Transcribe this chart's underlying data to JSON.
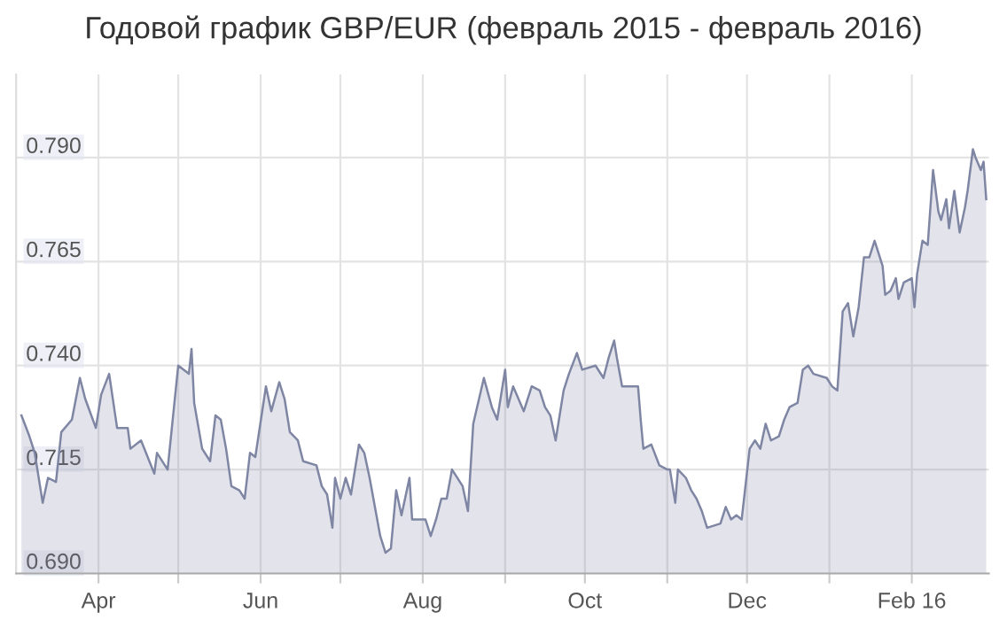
{
  "chart_data": {
    "type": "area",
    "title": "Годовой график GBP/EUR (февраль 2015 - февраль 2016)",
    "x": [
      "2015-03-03",
      "2015-03-06",
      "2015-03-08",
      "2015-03-11",
      "2015-03-13",
      "2015-03-16",
      "2015-03-18",
      "2015-03-22",
      "2015-03-25",
      "2015-03-27",
      "2015-03-31",
      "2015-04-02",
      "2015-04-05",
      "2015-04-08",
      "2015-04-12",
      "2015-04-13",
      "2015-04-17",
      "2015-04-22",
      "2015-04-23",
      "2015-04-27",
      "2015-05-01",
      "2015-05-05",
      "2015-05-06",
      "2015-05-07",
      "2015-05-10",
      "2015-05-13",
      "2015-05-15",
      "2015-05-17",
      "2015-05-19",
      "2015-05-21",
      "2015-05-24",
      "2015-05-26",
      "2015-05-28",
      "2015-05-30",
      "2015-06-03",
      "2015-06-05",
      "2015-06-08",
      "2015-06-10",
      "2015-06-12",
      "2015-06-15",
      "2015-06-17",
      "2015-06-22",
      "2015-06-24",
      "2015-06-26",
      "2015-06-28",
      "2015-06-29",
      "2015-07-01",
      "2015-07-03",
      "2015-07-05",
      "2015-07-08",
      "2015-07-10",
      "2015-07-12",
      "2015-07-16",
      "2015-07-18",
      "2015-07-20",
      "2015-07-21",
      "2015-07-22",
      "2015-07-24",
      "2015-07-27",
      "2015-07-28",
      "2015-08-02",
      "2015-08-04",
      "2015-08-06",
      "2015-08-08",
      "2015-08-10",
      "2015-08-12",
      "2015-08-16",
      "2015-08-18",
      "2015-08-20",
      "2015-08-24",
      "2015-08-27",
      "2015-08-29",
      "2015-09-01",
      "2015-09-02",
      "2015-09-04",
      "2015-09-08",
      "2015-09-11",
      "2015-09-14",
      "2015-09-16",
      "2015-09-18",
      "2015-09-20",
      "2015-09-23",
      "2015-09-25",
      "2015-09-28",
      "2015-09-30",
      "2015-10-05",
      "2015-10-08",
      "2015-10-10",
      "2015-10-12",
      "2015-10-13",
      "2015-10-15",
      "2015-10-21",
      "2015-10-22",
      "2015-10-23",
      "2015-10-26",
      "2015-10-29",
      "2015-11-01",
      "2015-11-02",
      "2015-11-04",
      "2015-11-05",
      "2015-11-08",
      "2015-11-10",
      "2015-11-12",
      "2015-11-14",
      "2015-11-16",
      "2015-11-21",
      "2015-11-23",
      "2015-11-25",
      "2015-11-27",
      "2015-11-29",
      "2015-12-02",
      "2015-12-04",
      "2015-12-06",
      "2015-12-08",
      "2015-12-10",
      "2015-12-13",
      "2015-12-15",
      "2015-12-17",
      "2015-12-20",
      "2015-12-22",
      "2015-12-24",
      "2015-12-26",
      "2015-12-31",
      "2016-01-02",
      "2016-01-04",
      "2016-01-06",
      "2016-01-08",
      "2016-01-10",
      "2016-01-12",
      "2016-01-14",
      "2016-01-16",
      "2016-01-18",
      "2016-01-21",
      "2016-01-22",
      "2016-01-24",
      "2016-01-26",
      "2016-01-27",
      "2016-01-29",
      "2016-02-01",
      "2016-02-02",
      "2016-02-03",
      "2016-02-05",
      "2016-02-07",
      "2016-02-08",
      "2016-02-09",
      "2016-02-11",
      "2016-02-12",
      "2016-02-14",
      "2016-02-15",
      "2016-02-17",
      "2016-02-19",
      "2016-02-21",
      "2016-02-22",
      "2016-02-24",
      "2016-02-25",
      "2016-02-27",
      "2016-02-28",
      "2016-02-29"
    ],
    "series": [
      {
        "color": "#7f86a3",
        "values": [
          0.728,
          0.723,
          0.719,
          0.707,
          0.713,
          0.712,
          0.724,
          0.727,
          0.737,
          0.732,
          0.725,
          0.733,
          0.738,
          0.725,
          0.725,
          0.72,
          0.722,
          0.714,
          0.719,
          0.715,
          0.74,
          0.738,
          0.744,
          0.731,
          0.72,
          0.717,
          0.728,
          0.727,
          0.72,
          0.711,
          0.71,
          0.708,
          0.719,
          0.718,
          0.735,
          0.729,
          0.736,
          0.732,
          0.724,
          0.722,
          0.717,
          0.716,
          0.711,
          0.709,
          0.701,
          0.713,
          0.708,
          0.713,
          0.709,
          0.721,
          0.719,
          0.713,
          0.699,
          0.695,
          0.696,
          0.703,
          0.71,
          0.704,
          0.713,
          0.703,
          0.703,
          0.699,
          0.703,
          0.708,
          0.708,
          0.715,
          0.711,
          0.705,
          0.726,
          0.737,
          0.73,
          0.727,
          0.739,
          0.73,
          0.735,
          0.729,
          0.735,
          0.734,
          0.73,
          0.728,
          0.722,
          0.734,
          0.738,
          0.743,
          0.739,
          0.74,
          0.737,
          0.742,
          0.746,
          0.742,
          0.735,
          0.735,
          0.727,
          0.72,
          0.721,
          0.716,
          0.715,
          0.715,
          0.707,
          0.715,
          0.713,
          0.71,
          0.708,
          0.705,
          0.701,
          0.702,
          0.706,
          0.703,
          0.704,
          0.703,
          0.72,
          0.722,
          0.72,
          0.726,
          0.722,
          0.723,
          0.727,
          0.73,
          0.731,
          0.739,
          0.74,
          0.738,
          0.737,
          0.735,
          0.734,
          0.753,
          0.755,
          0.747,
          0.754,
          0.766,
          0.766,
          0.77,
          0.764,
          0.757,
          0.758,
          0.761,
          0.756,
          0.76,
          0.761,
          0.754,
          0.762,
          0.77,
          0.769,
          0.778,
          0.787,
          0.777,
          0.775,
          0.78,
          0.773,
          0.782,
          0.772,
          0.778,
          0.782,
          0.792,
          0.79,
          0.787,
          0.789,
          0.78
        ]
      }
    ],
    "xlim": [
      "2015-03-01",
      "2016-03-01"
    ],
    "xticks": [
      {
        "value": "2015-04-01",
        "label": "Apr"
      },
      {
        "value": "2015-05-01",
        "label": null
      },
      {
        "value": "2015-06-01",
        "label": "Jun"
      },
      {
        "value": "2015-07-01",
        "label": null
      },
      {
        "value": "2015-08-01",
        "label": "Aug"
      },
      {
        "value": "2015-09-01",
        "label": null
      },
      {
        "value": "2015-10-01",
        "label": "Oct"
      },
      {
        "value": "2015-11-01",
        "label": null
      },
      {
        "value": "2015-12-01",
        "label": "Dec"
      },
      {
        "value": "2016-01-01",
        "label": null
      },
      {
        "value": "2016-02-01",
        "label": "Feb 16"
      }
    ],
    "ylim": [
      0.69,
      0.81
    ],
    "yticks": [
      {
        "value": 0.69,
        "label": "0.690"
      },
      {
        "value": 0.715,
        "label": "0.715"
      },
      {
        "value": 0.74,
        "label": "0.740"
      },
      {
        "value": 0.765,
        "label": "0.765"
      },
      {
        "value": 0.79,
        "label": "0.790"
      }
    ],
    "grid": true
  }
}
